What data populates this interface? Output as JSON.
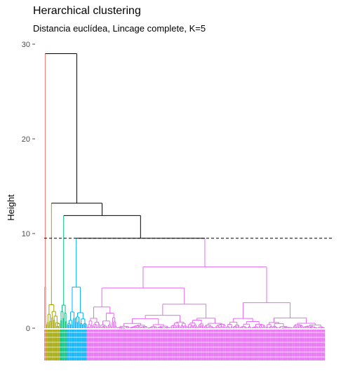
{
  "chart_data": {
    "type": "dendrogram",
    "title": "Herarchical clustering",
    "subtitle": "Distancia euclídea, Lincage complete, K=5",
    "xlabel": "",
    "ylabel": "Height",
    "ylim": [
      0,
      30
    ],
    "yticks": [
      0,
      10,
      20,
      30
    ],
    "cut_height": 9.5,
    "k": 5,
    "top_merges": [
      {
        "height": 29.0,
        "left": "red cluster",
        "right": "rest"
      },
      {
        "height": 13.2,
        "left": "olive cluster",
        "right": "rest"
      },
      {
        "height": 11.9,
        "left": "teal cluster",
        "right": "blue + violet"
      },
      {
        "height": 9.5,
        "left": "blue cluster",
        "right": "violet cluster"
      }
    ],
    "clusters": [
      {
        "color": "#F8766D",
        "n_leaves": 2
      },
      {
        "color": "#A3A500",
        "n_leaves": 14
      },
      {
        "color": "#00BF7D",
        "n_leaves": 7
      },
      {
        "color": "#00B0F6",
        "n_leaves": 20
      },
      {
        "color": "#E76BF3",
        "n_leaves": 240
      }
    ],
    "grid": false
  }
}
